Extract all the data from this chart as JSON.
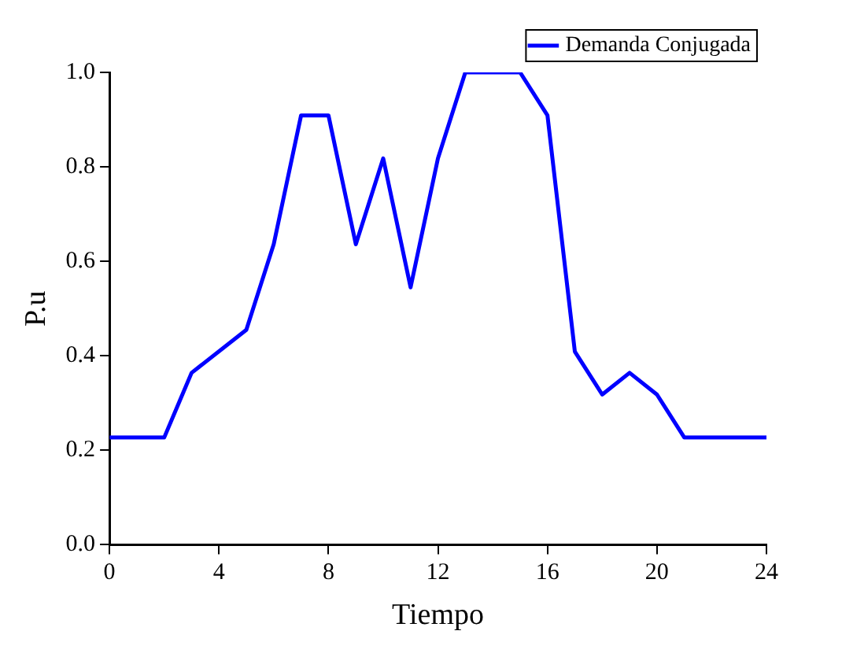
{
  "chart_data": {
    "type": "line",
    "xlabel": "Tiempo",
    "ylabel": "P.u",
    "series": [
      {
        "name": "Demanda Conjugada",
        "color": "#0000ff",
        "x": [
          0,
          2,
          3,
          5,
          6,
          7,
          8,
          9,
          10,
          11,
          12,
          13,
          15,
          16,
          17,
          18,
          19,
          20,
          21,
          24
        ],
        "values": [
          0.227,
          0.227,
          0.364,
          0.455,
          0.636,
          0.909,
          0.909,
          0.636,
          0.818,
          0.545,
          0.818,
          1.0,
          1.0,
          0.909,
          0.409,
          0.318,
          0.364,
          0.318,
          0.227,
          0.227
        ]
      }
    ],
    "xlim": [
      0,
      24
    ],
    "xticks": [
      0,
      4,
      8,
      12,
      16,
      20,
      24
    ],
    "ylim": [
      0,
      1
    ],
    "yticks": [
      {
        "value": 0,
        "label": "0.0"
      },
      {
        "value": 0.2,
        "label": "0.2"
      },
      {
        "value": 0.4,
        "label": "0.4"
      },
      {
        "value": 0.6,
        "label": "0.6"
      },
      {
        "value": 0.8,
        "label": "0.8"
      },
      {
        "value": 1,
        "label": "1.0"
      }
    ],
    "grid": false,
    "legend": "top right",
    "marker": "none",
    "line_style": "solid"
  }
}
